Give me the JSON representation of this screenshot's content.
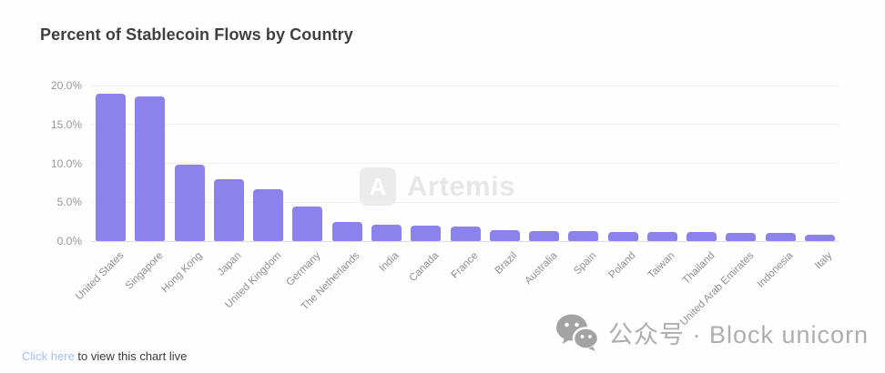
{
  "chart_data": {
    "type": "bar",
    "title": "Percent of Stablecoin Flows by Country",
    "categories": [
      "United States",
      "Singapore",
      "Hong Kong",
      "Japan",
      "United Kingdom",
      "Germany",
      "The Netherlands",
      "India",
      "Canada",
      "France",
      "Brazil",
      "Australia",
      "Spain",
      "Poland",
      "Taiwan",
      "Thailand",
      "United Arab Emirates",
      "Indonesia",
      "Italy"
    ],
    "values": [
      19.0,
      18.6,
      9.8,
      8.0,
      6.7,
      4.4,
      2.5,
      2.1,
      2.0,
      1.9,
      1.35,
      1.3,
      1.25,
      1.2,
      1.2,
      1.15,
      1.1,
      1.0,
      0.85
    ],
    "xlabel": "",
    "ylabel": "",
    "ylim": [
      0,
      20
    ],
    "ytick_labels": [
      "20.0%",
      "15.0%",
      "10.0%",
      "5.0%",
      "0.0%"
    ],
    "bar_color": "#8b82ec",
    "grid": "horizontal",
    "legend": "none"
  },
  "watermark": {
    "logo_letter": "A",
    "brand": "Artemis"
  },
  "footer": {
    "link_text": "Click here",
    "suffix": " to view this chart live"
  },
  "overlay": {
    "icon": "wechat-icon",
    "text": "公众号 · Block unicorn"
  },
  "colors": {
    "bar": "#8b82ec",
    "title": "#3f3f41",
    "axis_label": "#95959b",
    "gridline": "#efefef",
    "baseline": "#dcdce0",
    "link_blue": "#a5bff2",
    "watermark_gray": "#e7e7e7",
    "brandmark_gray": "#aeaeae"
  }
}
